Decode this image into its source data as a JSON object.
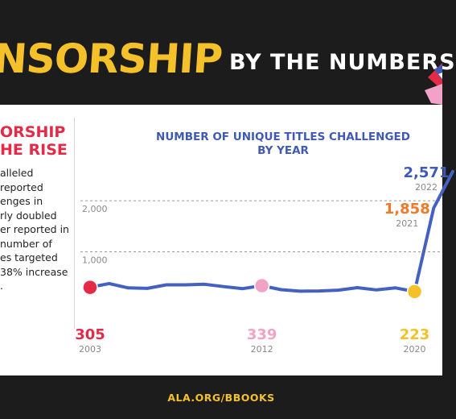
{
  "banner": {
    "title": "NSORSHIP",
    "subtitle": "BY THE NUMBERS"
  },
  "sidebar": {
    "headline_lines": [
      "ORSHIP",
      "HE RISE"
    ],
    "body_lines": [
      "alleled",
      " reported",
      "enges in",
      "rly doubled",
      "er reported in",
      " number of",
      "es targeted",
      "38% increase",
      "."
    ]
  },
  "chart_data": {
    "type": "line",
    "title": "NUMBER OF UNIQUE TITLES CHALLENGED BY YEAR",
    "title_lines": [
      "NUMBER OF UNIQUE TITLES CHALLENGED",
      "BY YEAR"
    ],
    "xlabel": "",
    "ylabel": "",
    "ylim": [
      0,
      2600
    ],
    "xlim": [
      2003,
      2022
    ],
    "gridlines": [
      {
        "value": 1000,
        "label": "1,000"
      },
      {
        "value": 2000,
        "label": "2,000"
      }
    ],
    "x": [
      2003,
      2004,
      2005,
      2006,
      2007,
      2008,
      2009,
      2010,
      2011,
      2012,
      2013,
      2014,
      2015,
      2016,
      2017,
      2018,
      2019,
      2020,
      2021,
      2022
    ],
    "values": [
      305,
      380,
      295,
      285,
      355,
      355,
      365,
      320,
      280,
      339,
      260,
      230,
      235,
      250,
      300,
      255,
      295,
      223,
      1858,
      2571
    ],
    "highlights": [
      {
        "year": 2003,
        "value_label": "305",
        "year_label": "2003",
        "color": "#e42a46",
        "label_pos": "below"
      },
      {
        "year": 2012,
        "value_label": "339",
        "year_label": "2012",
        "color": "#f2a2c6",
        "label_pos": "below"
      },
      {
        "year": 2020,
        "value_label": "223",
        "year_label": "2020",
        "color": "#f5c12b",
        "label_pos": "below"
      },
      {
        "year": 2021,
        "value_label": "1,858",
        "year_label": "2021",
        "color": "#f07a2a",
        "label_pos": "left"
      },
      {
        "year": 2022,
        "value_label": "2,571",
        "year_label": "2022",
        "color": "#3f5ab5",
        "label_pos": "left"
      }
    ],
    "line_color": "#4461c2",
    "value_label_color": "#3f5ab5",
    "year_label_color": "#888888"
  },
  "footer": {
    "link": "ALA.ORG/BBOOKS"
  },
  "colors": {
    "background": "#1c1c1c",
    "accent_yellow": "#f5c12b",
    "accent_red": "#e42a46",
    "accent_blue": "#3f5ab5"
  }
}
